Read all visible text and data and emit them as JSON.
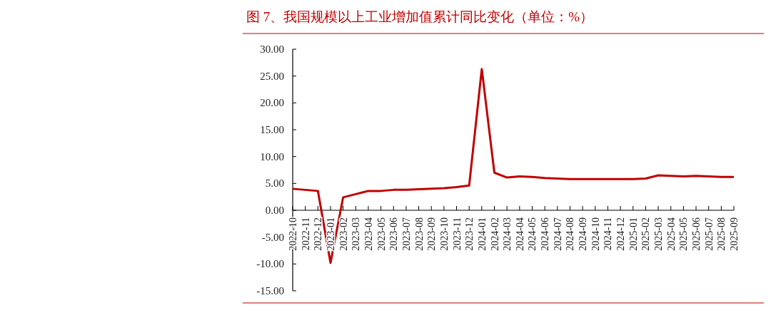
{
  "chart_data": {
    "type": "line",
    "title": "图 7、我国规模以上工业增加值累计同比变化（单位：%）",
    "categories": [
      "2022-10",
      "2022-11",
      "2022-12",
      "2023-01",
      "2023-02",
      "2023-03",
      "2023-04",
      "2023-05",
      "2023-06",
      "2023-07",
      "2023-08",
      "2023-09",
      "2023-10",
      "2023-11",
      "2023-12",
      "2024-01",
      "2024-02",
      "2024-03",
      "2024-04",
      "2024-05",
      "2024-06",
      "2024-07",
      "2024-08",
      "2024-09",
      "2024-10",
      "2024-11",
      "2024-12",
      "2025-01",
      "2025-02",
      "2025-03",
      "2025-04",
      "2025-05",
      "2025-06",
      "2025-07",
      "2025-08",
      "2025-09"
    ],
    "values": [
      4.0,
      3.8,
      3.6,
      -9.8,
      2.4,
      3.0,
      3.6,
      3.6,
      3.8,
      3.8,
      3.9,
      4.0,
      4.1,
      4.3,
      4.6,
      26.3,
      7.0,
      6.1,
      6.3,
      6.2,
      6.0,
      5.9,
      5.8,
      5.8,
      5.8,
      5.8,
      5.8,
      5.8,
      5.9,
      6.5,
      6.4,
      6.3,
      6.4,
      6.3,
      6.2,
      6.2
    ],
    "color": "#c00000",
    "ylim": [
      -15,
      30
    ],
    "yticks": [
      {
        "value": -15,
        "label": "-15.00"
      },
      {
        "value": -10,
        "label": "-10.00"
      },
      {
        "value": -5,
        "label": "-5.00"
      },
      {
        "value": 0,
        "label": "0.00"
      },
      {
        "value": 5,
        "label": "5.00"
      },
      {
        "value": 10,
        "label": "10.00"
      },
      {
        "value": 15,
        "label": "15.00"
      },
      {
        "value": 20,
        "label": "20.00"
      },
      {
        "value": 25,
        "label": "25.00"
      },
      {
        "value": 30,
        "label": "30.00"
      }
    ],
    "grid": false,
    "marker": "none",
    "line_style": "solid"
  }
}
